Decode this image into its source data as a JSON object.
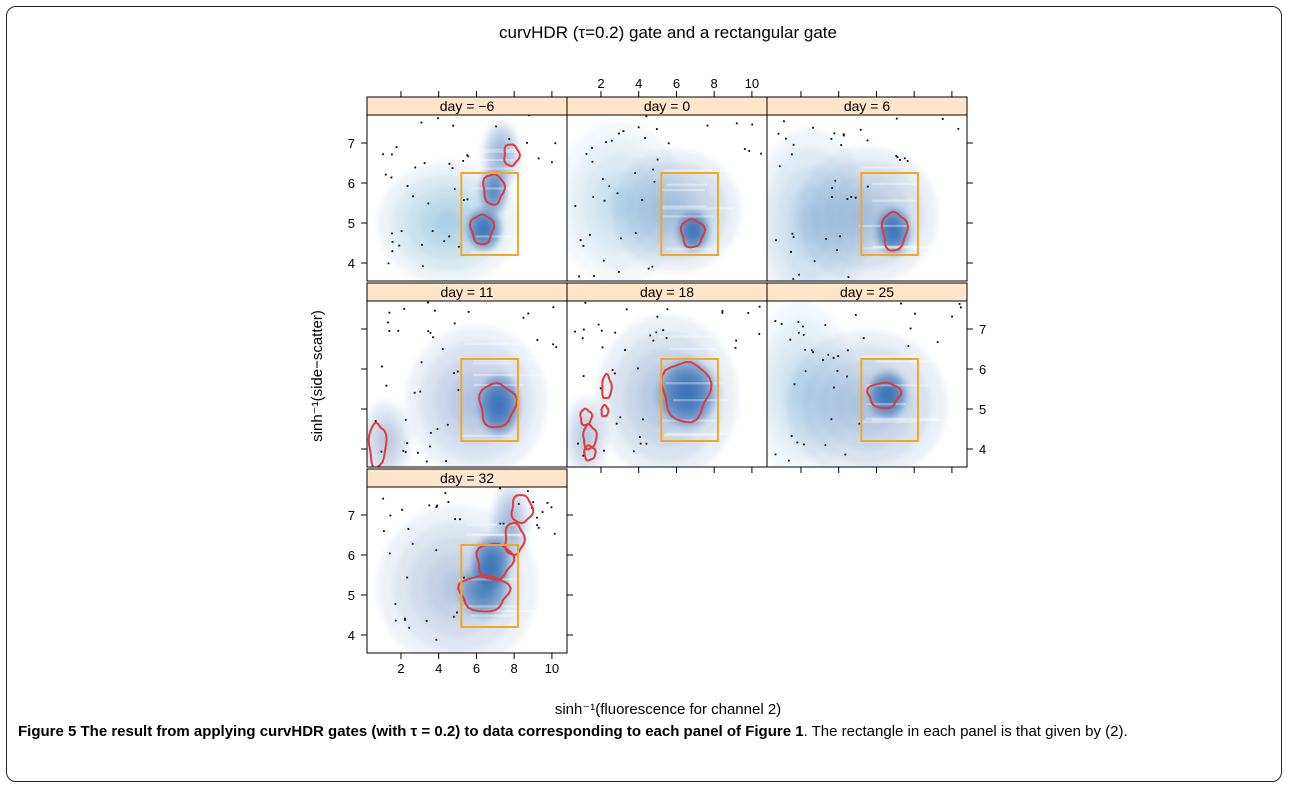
{
  "chart_data": {
    "type": "scatter",
    "title": "curvHDR (τ=0.2) gate and a rectangular gate",
    "xlabel": "sinh⁻¹(fluorescence for channel 2)",
    "ylabel": "sinh⁻¹(side−scatter)",
    "xlim": [
      0.2,
      10.8
    ],
    "ylim": [
      3.55,
      7.7
    ],
    "xticks": [
      2,
      4,
      6,
      8,
      10
    ],
    "yticks": [
      4,
      5,
      6,
      7
    ],
    "layout": "3x3 trellis, 7 panels",
    "rectangular_gate": {
      "x": [
        5.2,
        8.2
      ],
      "y": [
        4.2,
        6.25
      ],
      "color": "#f5a623"
    },
    "colors": {
      "strip": "#ffe5c9",
      "density": "#2a67b0",
      "curvhdr_gate": "#e23a3a",
      "points": "#000000"
    },
    "panels": [
      {
        "strip": "day = −6",
        "density": [
          {
            "x": 6.4,
            "y": 4.85,
            "sx": 0.55,
            "sy": 0.32,
            "w": 1.0
          },
          {
            "x": 6.9,
            "y": 5.8,
            "sx": 0.45,
            "sy": 0.35,
            "w": 0.75
          },
          {
            "x": 7.3,
            "y": 6.7,
            "sx": 0.6,
            "sy": 0.5,
            "w": 0.4
          },
          {
            "x": 4.5,
            "y": 5.0,
            "sx": 2.2,
            "sy": 0.9,
            "w": 0.22
          }
        ],
        "gates": [
          {
            "x": 6.3,
            "y": 4.85,
            "rx": 0.6,
            "ry": 0.37
          },
          {
            "x": 6.9,
            "y": 5.85,
            "rx": 0.55,
            "ry": 0.38
          },
          {
            "x": 7.85,
            "y": 6.7,
            "rx": 0.4,
            "ry": 0.27
          }
        ]
      },
      {
        "strip": "day = 0",
        "density": [
          {
            "x": 6.9,
            "y": 4.8,
            "sx": 0.5,
            "sy": 0.3,
            "w": 1.0
          },
          {
            "x": 6.0,
            "y": 5.3,
            "sx": 2.0,
            "sy": 0.9,
            "w": 0.3
          },
          {
            "x": 3.0,
            "y": 5.5,
            "sx": 2.0,
            "sy": 1.2,
            "w": 0.15
          }
        ],
        "gates": [
          {
            "x": 6.85,
            "y": 4.75,
            "rx": 0.6,
            "ry": 0.35
          }
        ]
      },
      {
        "strip": "day = 6",
        "density": [
          {
            "x": 6.9,
            "y": 4.8,
            "sx": 0.55,
            "sy": 0.35,
            "w": 1.0
          },
          {
            "x": 5.5,
            "y": 5.2,
            "sx": 2.2,
            "sy": 1.0,
            "w": 0.3
          },
          {
            "x": 2.5,
            "y": 5.0,
            "sx": 1.8,
            "sy": 1.4,
            "w": 0.18
          }
        ],
        "gates": [
          {
            "x": 6.95,
            "y": 4.8,
            "rx": 0.65,
            "ry": 0.48
          }
        ]
      },
      {
        "strip": "day = 11",
        "density": [
          {
            "x": 7.2,
            "y": 5.1,
            "sx": 0.65,
            "sy": 0.45,
            "w": 1.0
          },
          {
            "x": 6.0,
            "y": 5.2,
            "sx": 2.2,
            "sy": 1.1,
            "w": 0.28
          },
          {
            "x": 1.2,
            "y": 4.2,
            "sx": 0.8,
            "sy": 0.6,
            "w": 0.25
          }
        ],
        "gates": [
          {
            "x": 7.1,
            "y": 5.1,
            "rx": 0.95,
            "ry": 0.55
          },
          {
            "x": 0.75,
            "y": 4.1,
            "rx": 0.45,
            "ry": 0.55
          }
        ]
      },
      {
        "strip": "day = 18",
        "density": [
          {
            "x": 6.6,
            "y": 5.4,
            "sx": 0.9,
            "sy": 0.5,
            "w": 1.0
          },
          {
            "x": 5.5,
            "y": 5.3,
            "sx": 2.2,
            "sy": 1.2,
            "w": 0.3
          },
          {
            "x": 1.2,
            "y": 4.3,
            "sx": 0.7,
            "sy": 0.6,
            "w": 0.25
          }
        ],
        "gates": [
          {
            "x": 6.5,
            "y": 5.45,
            "rx": 1.25,
            "ry": 0.75
          },
          {
            "x": 1.4,
            "y": 4.3,
            "rx": 0.35,
            "ry": 0.3
          },
          {
            "x": 1.2,
            "y": 4.8,
            "rx": 0.3,
            "ry": 0.2
          },
          {
            "x": 2.3,
            "y": 5.55,
            "rx": 0.25,
            "ry": 0.3
          },
          {
            "x": 1.4,
            "y": 3.9,
            "rx": 0.3,
            "ry": 0.18
          },
          {
            "x": 2.2,
            "y": 4.95,
            "rx": 0.18,
            "ry": 0.14
          }
        ]
      },
      {
        "strip": "day = 25",
        "density": [
          {
            "x": 6.6,
            "y": 5.35,
            "sx": 0.6,
            "sy": 0.35,
            "w": 1.0
          },
          {
            "x": 5.5,
            "y": 5.1,
            "sx": 2.5,
            "sy": 1.1,
            "w": 0.3
          },
          {
            "x": 2.0,
            "y": 5.5,
            "sx": 1.6,
            "sy": 1.3,
            "w": 0.15
          }
        ],
        "gates": [
          {
            "x": 6.4,
            "y": 5.35,
            "rx": 0.85,
            "ry": 0.32
          }
        ]
      },
      {
        "strip": "day = 32",
        "density": [
          {
            "x": 6.8,
            "y": 5.8,
            "sx": 0.6,
            "sy": 0.4,
            "w": 1.0
          },
          {
            "x": 6.4,
            "y": 5.1,
            "sx": 0.8,
            "sy": 0.4,
            "w": 0.7
          },
          {
            "x": 7.8,
            "y": 6.8,
            "sx": 0.6,
            "sy": 0.6,
            "w": 0.35
          },
          {
            "x": 5.0,
            "y": 5.2,
            "sx": 2.5,
            "sy": 1.2,
            "w": 0.25
          }
        ],
        "gates": [
          {
            "x": 6.95,
            "y": 5.85,
            "rx": 0.95,
            "ry": 0.45
          },
          {
            "x": 6.4,
            "y": 5.05,
            "rx": 1.3,
            "ry": 0.45
          },
          {
            "x": 8.0,
            "y": 6.4,
            "rx": 0.5,
            "ry": 0.4
          },
          {
            "x": 8.4,
            "y": 7.15,
            "rx": 0.55,
            "ry": 0.35
          }
        ]
      }
    ]
  },
  "caption": {
    "lead": "Figure 5 The result from applying curvHDR gates (with τ = 0.2) to data corresponding to each panel of Figure 1",
    "rest": ". The rectangle in each panel is that given by (2)."
  }
}
